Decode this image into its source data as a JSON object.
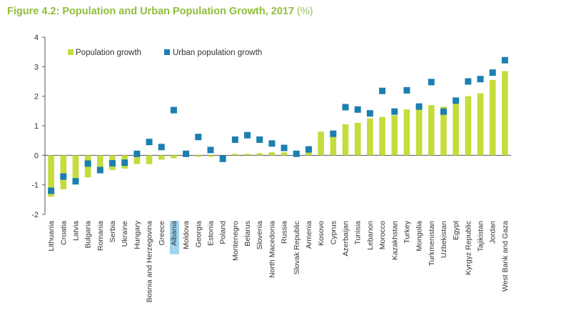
{
  "figure": {
    "title": "Figure 4.2: Population and Urban Population Growth, 2017",
    "unit": "(%)"
  },
  "colors": {
    "title": "#8fbe3b",
    "population_bar": "#c5dc3c",
    "urban_marker": "#1b7fb0",
    "highlight": "#9ed3ee"
  },
  "chart_data": {
    "type": "bar",
    "title": "Figure 4.2: Population and Urban Population Growth, 2017 (%)",
    "xlabel": "",
    "ylabel": "",
    "ylim": [
      -2,
      4
    ],
    "yticks": [
      -2,
      -1,
      0,
      1,
      2,
      3,
      4
    ],
    "grid": false,
    "legend_position": "top-left",
    "highlighted_category": "Albania",
    "categories": [
      "Lithuania",
      "Croatia",
      "Latvia",
      "Bulgaria",
      "Romania",
      "Serbia",
      "Ukraine",
      "Hungary",
      "Bosnia and Herzegovina",
      "Greece",
      "Albania",
      "Moldova",
      "Georgia",
      "Estonia",
      "Poland",
      "Montenegro",
      "Belarus",
      "Slovenia",
      "North Macedonia",
      "Russia",
      "Slovak Republic",
      "Armenia",
      "Kosovo",
      "Cyprus",
      "Azerbaijan",
      "Tunisia",
      "Lebanon",
      "Morocco",
      "Kazakhstan",
      "Turkey",
      "Mongolia",
      "Turkmenistan",
      "Uzbekistan",
      "Egypt",
      "Kyrgyz Republic",
      "Tajikistan",
      "Jordan",
      "West Bank and Gaza"
    ],
    "series": [
      {
        "name": "Population growth",
        "type": "bar",
        "values": [
          -1.4,
          -1.15,
          -0.95,
          -0.75,
          -0.6,
          -0.5,
          -0.45,
          -0.3,
          -0.3,
          -0.15,
          -0.1,
          -0.05,
          -0.05,
          -0.05,
          0.0,
          0.05,
          0.05,
          0.07,
          0.1,
          0.1,
          0.15,
          0.2,
          0.8,
          0.8,
          1.05,
          1.1,
          1.25,
          1.3,
          1.35,
          1.55,
          1.7,
          1.7,
          1.65,
          1.8,
          2.0,
          2.1,
          2.55,
          2.85
        ]
      },
      {
        "name": "Urban population growth",
        "type": "marker",
        "values": [
          -1.2,
          -0.72,
          -0.88,
          -0.28,
          -0.5,
          -0.27,
          -0.25,
          0.05,
          0.45,
          0.28,
          1.53,
          0.05,
          0.62,
          0.18,
          -0.12,
          0.53,
          0.68,
          0.53,
          0.4,
          0.25,
          0.05,
          0.2,
          null,
          0.73,
          1.63,
          1.55,
          1.42,
          2.18,
          1.48,
          2.2,
          1.65,
          2.48,
          1.48,
          1.85,
          2.5,
          2.58,
          2.8,
          3.22
        ]
      }
    ]
  }
}
